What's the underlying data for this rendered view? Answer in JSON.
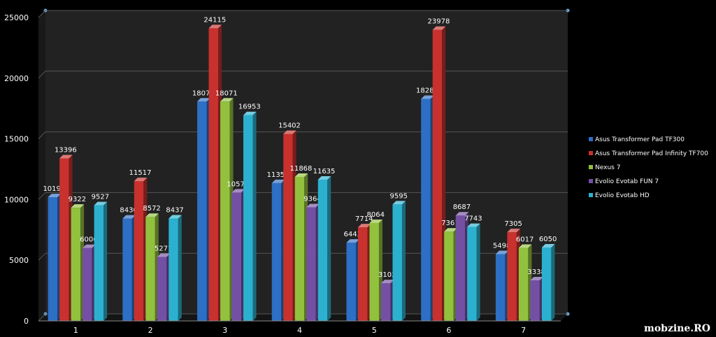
{
  "chart_data": {
    "type": "bar",
    "categories": [
      "1",
      "2",
      "3",
      "4",
      "5",
      "6",
      "7"
    ],
    "series": [
      {
        "name": "Asus Transformer Pad TF300",
        "color": "#2d6fc4",
        "values": [
          10191,
          8430,
          18072,
          11352,
          6443,
          18287,
          5498
        ]
      },
      {
        "name": "Asus Transformer Pad Infinity TF700",
        "color": "#c8312e",
        "values": [
          13396,
          11517,
          24115,
          15402,
          7714,
          23978,
          7305
        ]
      },
      {
        "name": "Nexus 7",
        "color": "#92c13d",
        "values": [
          9322,
          8572,
          18071,
          11868,
          8064,
          7361,
          6017
        ]
      },
      {
        "name": "Evolio Evotab FUN 7",
        "color": "#7450a4",
        "values": [
          6006,
          5271,
          10579,
          9364,
          3103,
          8687,
          3338
        ]
      },
      {
        "name": "Evolio Evotab HD",
        "color": "#2bb1cf",
        "values": [
          9527,
          8437,
          16953,
          11635,
          9595,
          7743,
          6050
        ]
      }
    ],
    "yticks": [
      "0",
      "5000",
      "10000",
      "15000",
      "20000",
      "25000"
    ],
    "ylim": [
      0,
      25000
    ],
    "grid": true,
    "legend": "right",
    "watermark": "mobzine.RO"
  }
}
